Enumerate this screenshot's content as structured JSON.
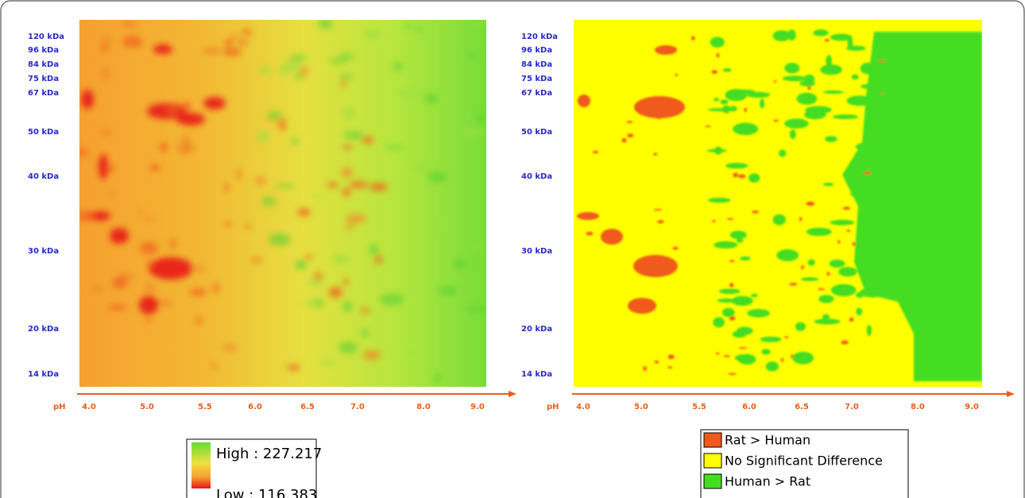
{
  "panels": [
    {
      "y_labels": [
        "120 kDa",
        "96 kDa",
        "84 kDa",
        "75 kDa",
        "67 kDa",
        "50 kDa",
        "40 kDa",
        "30 kDa",
        "20 kDa",
        "14 kDa"
      ],
      "x_axis_label": "pH",
      "x_labels": [
        "4.0",
        "5.0",
        "5.5",
        "6.0",
        "6.5",
        "7.0",
        "8.0",
        "9.0"
      ],
      "legend": {
        "high": "High : 227.217",
        "low": "Low : 116.383"
      }
    },
    {
      "y_labels": [
        "120 kDa",
        "96 kDa",
        "84 kDa",
        "75 kDa",
        "67 kDa",
        "50 kDa",
        "40 kDa",
        "30 kDa",
        "20 kDa",
        "14 kDa"
      ],
      "x_axis_label": "pH",
      "x_labels": [
        "4.0",
        "5.0",
        "5.5",
        "6.0",
        "6.5",
        "7.0",
        "8.0",
        "9.0"
      ],
      "legend": [
        "Rat > Human",
        "No Significant Difference",
        "Human > Rat"
      ]
    }
  ]
}
